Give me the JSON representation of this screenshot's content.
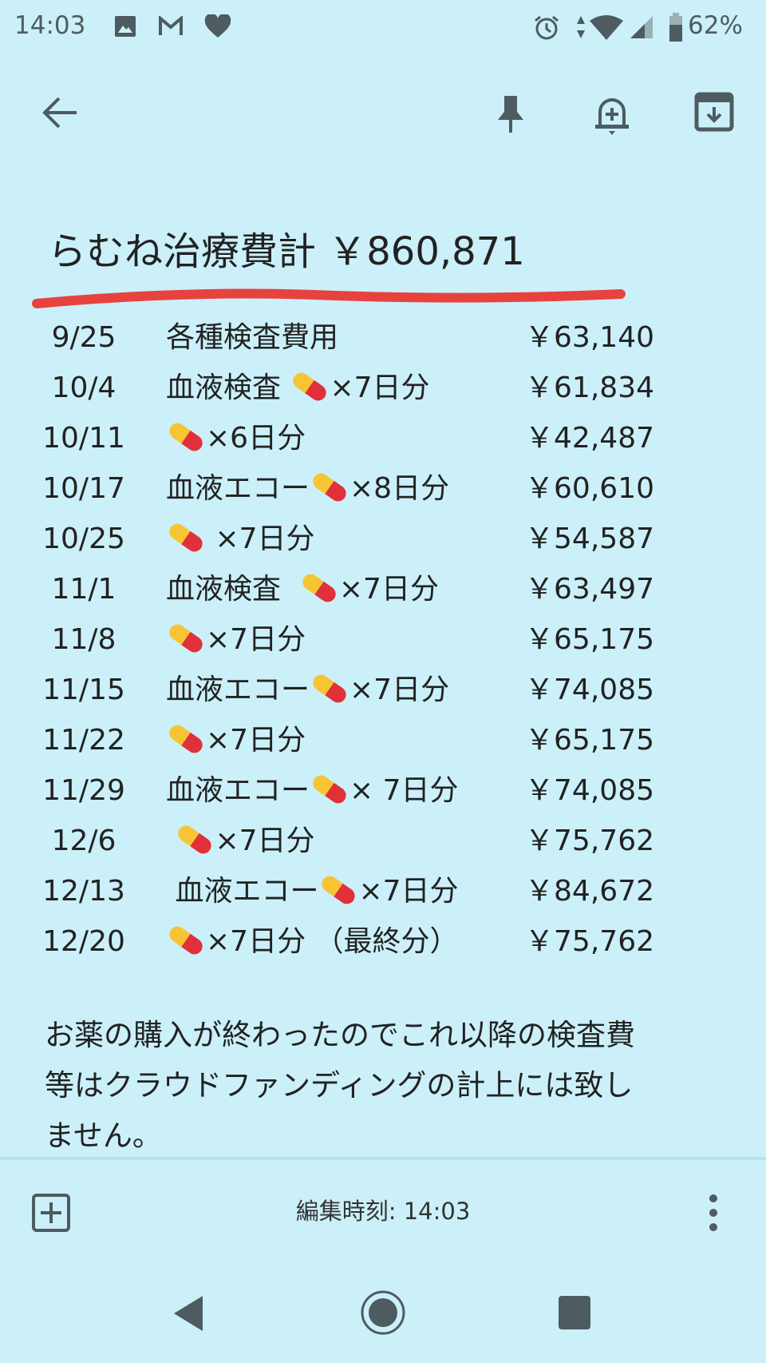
{
  "status_bar": {
    "time": "14:03",
    "battery": "62%",
    "left_icons": [
      "gallery-icon",
      "gmail-icon",
      "heart-icon"
    ],
    "right_icons": [
      "alarm-icon",
      "data-arrows-icon",
      "wifi-icon",
      "signal-icon",
      "battery-icon"
    ]
  },
  "toolbar": {
    "icons": [
      "back-arrow-icon",
      "pin-icon",
      "reminder-bell-icon",
      "archive-icon"
    ]
  },
  "note": {
    "title": "らむね治療費計 ￥860,871",
    "underline_color": "#e8423f",
    "rows": [
      {
        "date": "9/25",
        "before": "各種検査費用",
        "pill": false,
        "after": "",
        "price": "￥63,140"
      },
      {
        "date": "10/4",
        "before": "血液検査 ",
        "pill": true,
        "after": "×7日分",
        "price": "￥61,834"
      },
      {
        "date": "10/11",
        "before": "",
        "pill": true,
        "after": "×6日分",
        "price": "￥42,487"
      },
      {
        "date": "10/17",
        "before": "血液エコー",
        "pill": true,
        "after": "×8日分",
        "price": "￥60,610"
      },
      {
        "date": "10/25",
        "before": "",
        "pill": true,
        "after": " ×7日分",
        "price": "￥54,587"
      },
      {
        "date": "11/1",
        "before": "血液検査  ",
        "pill": true,
        "after": "×7日分",
        "price": "￥63,497"
      },
      {
        "date": "11/8",
        "before": "",
        "pill": true,
        "after": "×7日分",
        "price": "￥65,175"
      },
      {
        "date": "11/15",
        "before": "血液エコー",
        "pill": true,
        "after": "×7日分",
        "price": "￥74,085"
      },
      {
        "date": "11/22",
        "before": "",
        "pill": true,
        "after": "×7日分",
        "price": "￥65,175"
      },
      {
        "date": "11/29",
        "before": "血液エコー",
        "pill": true,
        "after": "× 7日分",
        "price": "￥74,085"
      },
      {
        "date": "12/6",
        "before": " ",
        "pill": true,
        "after": "×7日分",
        "price": "￥75,762"
      },
      {
        "date": "12/13",
        "before": " 血液エコー",
        "pill": true,
        "after": "×7日分",
        "price": "￥84,672"
      },
      {
        "date": "12/20",
        "before": "",
        "pill": true,
        "after": "×7日分 （最終分）",
        "price": "￥75,762"
      }
    ],
    "body_lines": [
      "お薬の購入が終わったのでこれ以降の検査費",
      "等はクラウドファンディングの計上には致し",
      "ません。"
    ]
  },
  "bottom_bar": {
    "edited": "編集時刻: 14:03"
  },
  "nav_bar": {
    "icons": [
      "back-triangle-icon",
      "home-circle-icon",
      "recents-square-icon"
    ]
  }
}
